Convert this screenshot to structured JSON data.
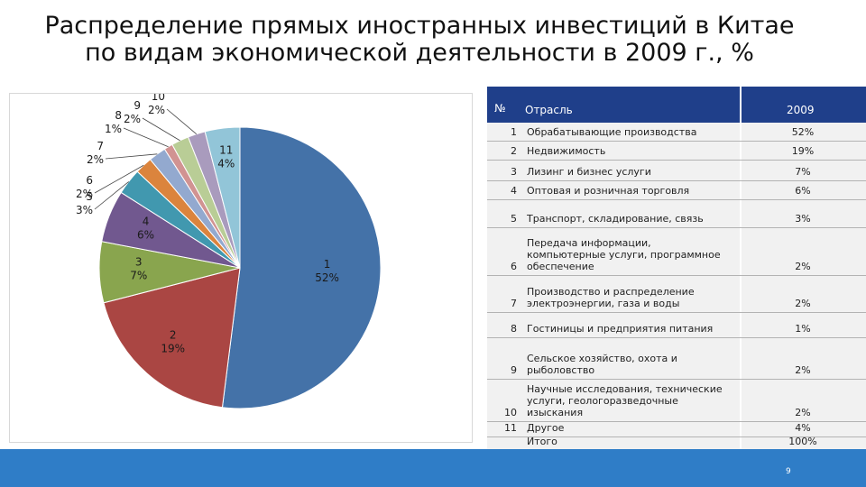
{
  "title_line1": "Распределение прямых иностранных инвестиций в Китае",
  "title_line2": "по видам экономической деятельности в 2009 г., %",
  "table": {
    "header": {
      "num": "№",
      "name": "Отрасль",
      "year": "2009"
    },
    "rows": [
      {
        "num": "1",
        "name": [
          "Обрабатывающие производства"
        ],
        "value": "52%"
      },
      {
        "num": "2",
        "name": [
          "Недвижимость"
        ],
        "value": "19%"
      },
      {
        "num": "3",
        "name": [
          "Лизинг и бизнес услуги"
        ],
        "value": "7%"
      },
      {
        "num": "4",
        "name": [
          "Оптовая и розничная торговля"
        ],
        "value": "6%"
      },
      {
        "num": "5",
        "name": [
          "Транспорт, складирование, связь"
        ],
        "value": "3%"
      },
      {
        "num": "6",
        "name": [
          "Передача информации,",
          "компьютерные услуги, программное",
          "обеспечение"
        ],
        "value": "2%"
      },
      {
        "num": "7",
        "name": [
          "Производство и распределение",
          "электроэнергии, газа и воды"
        ],
        "value": "2%"
      },
      {
        "num": "8",
        "name": [
          "Гостиницы и предприятия питания"
        ],
        "value": "1%"
      },
      {
        "num": "9",
        "name": [
          "Сельское хозяйство, охота и",
          "рыболовство"
        ],
        "value": "2%"
      },
      {
        "num": "10",
        "name": [
          "Научные исследования, технические",
          "услуги, геологоразведочные",
          "изыскания"
        ],
        "value": "2%"
      },
      {
        "num": "11",
        "name": [
          "Другое"
        ],
        "value": "4%"
      },
      {
        "num": "",
        "name": [
          "Итого"
        ],
        "value": "100%"
      }
    ]
  },
  "chart_data": {
    "type": "pie",
    "slices": [
      {
        "label": "1",
        "value": 52,
        "text": "52%",
        "color": "#4472a8"
      },
      {
        "label": "2",
        "value": 19,
        "text": "19%",
        "color": "#aa4643"
      },
      {
        "label": "3",
        "value": 7,
        "text": "7%",
        "color": "#89a54e"
      },
      {
        "label": "4",
        "value": 6,
        "text": "6%",
        "color": "#71588f"
      },
      {
        "label": "5",
        "value": 3,
        "text": "3%",
        "color": "#4198af"
      },
      {
        "label": "6",
        "value": 2,
        "text": "2%",
        "color": "#db843d"
      },
      {
        "label": "7",
        "value": 2,
        "text": "2%",
        "color": "#93a9cf"
      },
      {
        "label": "8",
        "value": 1,
        "text": "1%",
        "color": "#d19392"
      },
      {
        "label": "9",
        "value": 2,
        "text": "2%",
        "color": "#b9cd96"
      },
      {
        "label": "10",
        "value": 2,
        "text": "2%",
        "color": "#a99bbd"
      },
      {
        "label": "11",
        "value": 4,
        "text": "4%",
        "color": "#92c5d8"
      }
    ]
  },
  "page_number": "9"
}
